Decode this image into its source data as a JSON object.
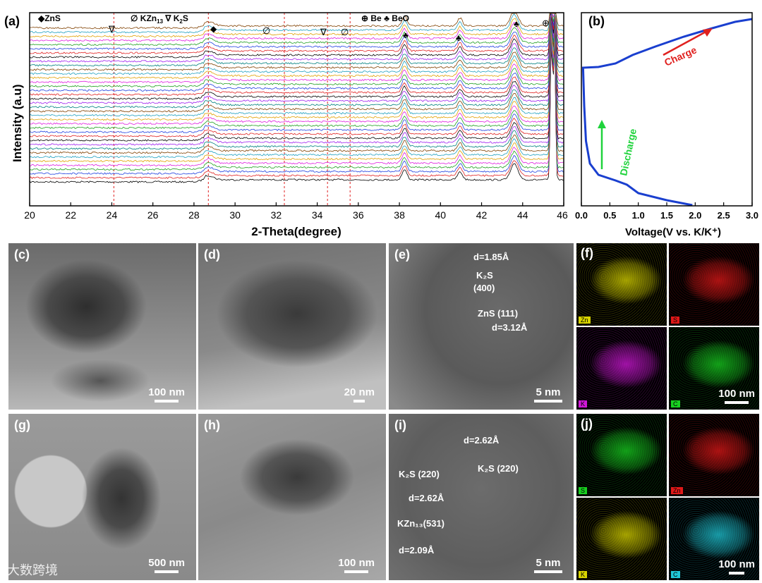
{
  "panel_a": {
    "label": "(a)",
    "xlabel": "2-Theta(degree)",
    "ylabel": "Intensity (a.u)",
    "x_ticks": [
      "20",
      "22",
      "24",
      "26",
      "28",
      "30",
      "32",
      "34",
      "36",
      "38",
      "40",
      "42",
      "44",
      "46"
    ],
    "legend": {
      "zns": "◆ZnS",
      "kzn": "∅ KZn",
      "kzn_sub": "13",
      "k2s": "∇ K",
      "k2s_sub": "2",
      "k2s_end": "S",
      "be_beo": "⊕ Be ♣ BeO"
    },
    "ref_lines_deg": [
      24.1,
      28.7,
      32.4,
      34.5,
      35.6
    ]
  },
  "panel_b": {
    "label": "(b)",
    "xlabel": "Voltage(V vs. K/K⁺)",
    "x_ticks": [
      "0.0",
      "0.5",
      "1.0",
      "1.5",
      "2.0",
      "2.5",
      "3.0"
    ],
    "charge_label": "Charge",
    "discharge_label": "Discharge",
    "charge_color": "#e0211f",
    "discharge_color": "#1fd33c",
    "curve_color": "#1a3fcf"
  },
  "tem": {
    "c": {
      "label": "(c)",
      "scale": "100 nm"
    },
    "d": {
      "label": "(d)",
      "scale": "20 nm"
    },
    "e": {
      "label": "(e)",
      "scale": "5 nm",
      "a1": "d=1.85Å",
      "a2": "K₂S",
      "a3": "(400)",
      "a4": "ZnS (111)",
      "a5": "d=3.12Å"
    },
    "g": {
      "label": "(g)",
      "scale": "500 nm"
    },
    "h": {
      "label": "(h)",
      "scale": "100 nm"
    },
    "i": {
      "label": "(i)",
      "scale": "5 nm",
      "a1": "d=2.62Å",
      "a2": "K₂S (220)",
      "a3": "K₂S (220)",
      "a4": "d=2.62Å",
      "a5": "KZn₁₃(531)",
      "a6": "d=2.09Å"
    }
  },
  "eds_f": {
    "label": "(f)",
    "scale": "100 nm",
    "maps": [
      {
        "tag": "Zn",
        "color": "#d8d400"
      },
      {
        "tag": "S",
        "color": "#e01818"
      },
      {
        "tag": "K",
        "color": "#d018d8"
      },
      {
        "tag": "C",
        "color": "#18d020"
      }
    ]
  },
  "eds_j": {
    "label": "(j)",
    "scale": "100 nm",
    "maps": [
      {
        "tag": "S",
        "color": "#18d020"
      },
      {
        "tag": "Zn",
        "color": "#e01818"
      },
      {
        "tag": "K",
        "color": "#d8d400"
      },
      {
        "tag": "C",
        "color": "#20c8d8"
      }
    ]
  },
  "watermark": "大数跨境",
  "trace_colors": [
    "#000000",
    "#e02020",
    "#2040e0",
    "#20a020",
    "#e020e0",
    "#e0a000",
    "#20a0c0",
    "#804000",
    "#008080",
    "#a020f0"
  ]
}
